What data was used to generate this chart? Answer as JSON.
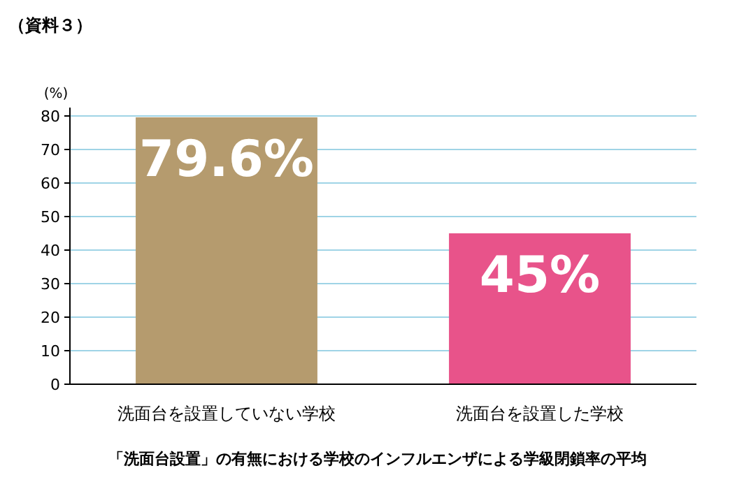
{
  "chart_data": {
    "type": "bar",
    "title": "（資料３）",
    "ylabel": "(%)",
    "categories": [
      "洗面台を設置していない学校",
      "洗面台を設置した学校"
    ],
    "values": [
      79.6,
      45
    ],
    "colors": [
      "#b59b6e",
      "#e8538a"
    ],
    "value_labels": [
      "79.6%",
      "45%"
    ],
    "ylim": [
      0,
      80
    ],
    "yticks": [
      0,
      10,
      20,
      30,
      40,
      50,
      60,
      70,
      80
    ],
    "grid": "y",
    "annotations": [
      "「洗面台設置」の有無における学校のインフルエンザによる学級閉鎖率の平均"
    ]
  }
}
